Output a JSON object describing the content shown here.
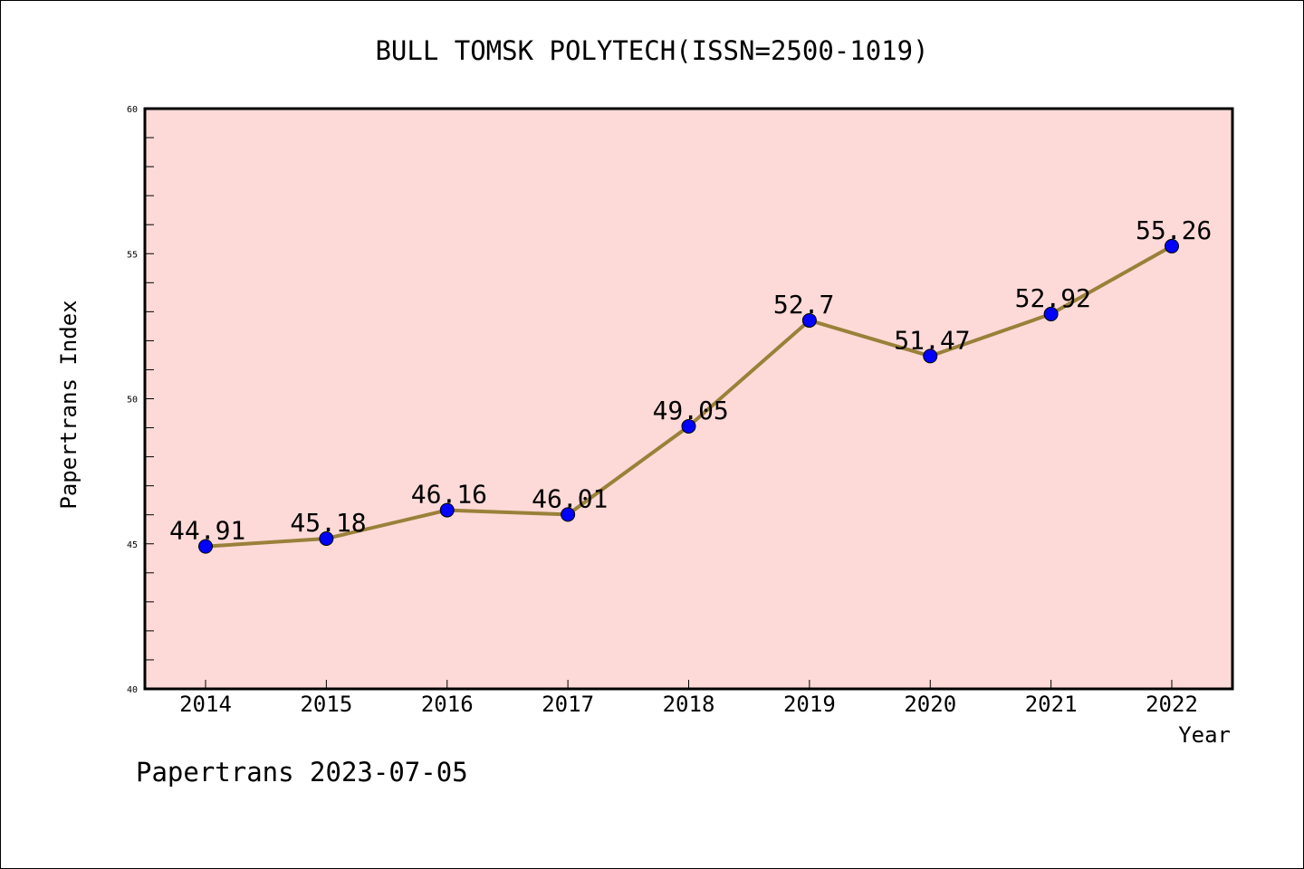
{
  "chart_data": {
    "type": "line",
    "title": "BULL TOMSK POLYTECH(ISSN=2500-1019)",
    "xlabel": "Year",
    "ylabel": "Papertrans Index",
    "categories": [
      "2014",
      "2015",
      "2016",
      "2017",
      "2018",
      "2019",
      "2020",
      "2021",
      "2022"
    ],
    "values": [
      44.91,
      45.18,
      46.16,
      46.01,
      49.05,
      52.7,
      51.47,
      52.92,
      55.26
    ],
    "data_labels": [
      "44.91",
      "45.18",
      "46.16",
      "46.01",
      "49.05",
      "52.7",
      "51.47",
      "52.92",
      "55.26"
    ],
    "ylim": [
      40,
      60
    ],
    "yticks": [
      40,
      45,
      50,
      55,
      60
    ],
    "ytick_labels": [
      "40",
      "45",
      "50",
      "55",
      "60"
    ],
    "grid": false,
    "colors": {
      "plot_background": "#fddad7",
      "line": "#9a8039",
      "marker": "#0000ff"
    }
  },
  "footer": "Papertrans 2023-07-05"
}
